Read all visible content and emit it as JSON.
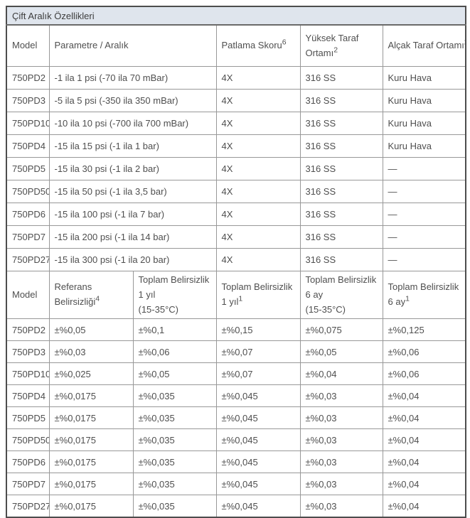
{
  "colors": {
    "title_bar_bg": "#dfe5ed",
    "outer_border": "#4d4d4d",
    "inner_border": "#989898",
    "text": "#4f4f4f"
  },
  "table": {
    "title": "Çift Aralık Özellikleri",
    "section1": {
      "headers": [
        {
          "text": "Model",
          "sup": ""
        },
        {
          "text": "Parametre / Aralık",
          "sup": ""
        },
        {
          "text": "Patlama Skoru",
          "sup": "6"
        },
        {
          "text": "Yüksek Taraf\nOrtamı",
          "sup": "2"
        },
        {
          "text": "Alçak Taraf Ortamı",
          "sup": "2"
        }
      ],
      "rows": [
        [
          "750PD2",
          "-1 ila 1 psi (-70 ila 70 mBar)",
          "4X",
          "316 SS",
          "Kuru Hava"
        ],
        [
          "750PD3",
          "-5 ila 5 psi (-350 ila 350 mBar)",
          "4X",
          "316 SS",
          "Kuru Hava"
        ],
        [
          "750PD10",
          "-10 ila 10 psi (-700 ila 700 mBar)",
          "4X",
          "316 SS",
          "Kuru Hava"
        ],
        [
          "750PD4",
          "-15 ila 15 psi (-1 ila 1 bar)",
          "4X",
          "316 SS",
          "Kuru Hava"
        ],
        [
          "750PD5",
          "-15 ila 30 psi (-1 ila 2 bar)",
          "4X",
          "316 SS",
          "—"
        ],
        [
          "750PD50",
          "-15 ila 50 psi (-1 ila 3,5 bar)",
          "4X",
          "316 SS",
          "—"
        ],
        [
          "750PD6",
          "-15 ila 100 psi (-1 ila 7 bar)",
          "4X",
          "316 SS",
          "—"
        ],
        [
          "750PD7",
          "-15 ila 200 psi (-1 ila 14 bar)",
          "4X",
          "316 SS",
          "—"
        ],
        [
          "750PD27",
          "-15 ila 300 psi (-1 ila 20 bar)",
          "4X",
          "316 SS",
          "—"
        ]
      ]
    },
    "section2": {
      "headers": [
        {
          "text": "Model",
          "sup": ""
        },
        {
          "text": "Referans\nBelirsizliği",
          "sup": "4"
        },
        {
          "text": "Toplam Belirsizlik\n1 yıl\n(15-35°C)",
          "sup": ""
        },
        {
          "text": "Toplam Belirsizlik\n1 yıl",
          "sup": "1"
        },
        {
          "text": "Toplam Belirsizlik\n6 ay\n(15-35°C)",
          "sup": ""
        },
        {
          "text": "Toplam Belirsizlik\n6 ay",
          "sup": "1"
        }
      ],
      "rows": [
        [
          "750PD2",
          "±%0,05",
          "±%0,1",
          "±%0,15",
          "±%0,075",
          "±%0,125"
        ],
        [
          "750PD3",
          "±%0,03",
          "±%0,06",
          "±%0,07",
          "±%0,05",
          "±%0,06"
        ],
        [
          "750PD10",
          "±%0,025",
          "±%0,05",
          "±%0,07",
          "±%0,04",
          "±%0,06"
        ],
        [
          "750PD4",
          "±%0,0175",
          "±%0,035",
          "±%0,045",
          "±%0,03",
          "±%0,04"
        ],
        [
          "750PD5",
          "±%0,0175",
          "±%0,035",
          "±%0,045",
          "±%0,03",
          "±%0,04"
        ],
        [
          "750PD50",
          "±%0,0175",
          "±%0,035",
          "±%0,045",
          "±%0,03",
          "±%0,04"
        ],
        [
          "750PD6",
          "±%0,0175",
          "±%0,035",
          "±%0,045",
          "±%0,03",
          "±%0,04"
        ],
        [
          "750PD7",
          "±%0,0175",
          "±%0,035",
          "±%0,045",
          "±%0,03",
          "±%0,04"
        ],
        [
          "750PD27",
          "±%0,0175",
          "±%0,035",
          "±%0,045",
          "±%0,03",
          "±%0,04"
        ]
      ]
    }
  }
}
